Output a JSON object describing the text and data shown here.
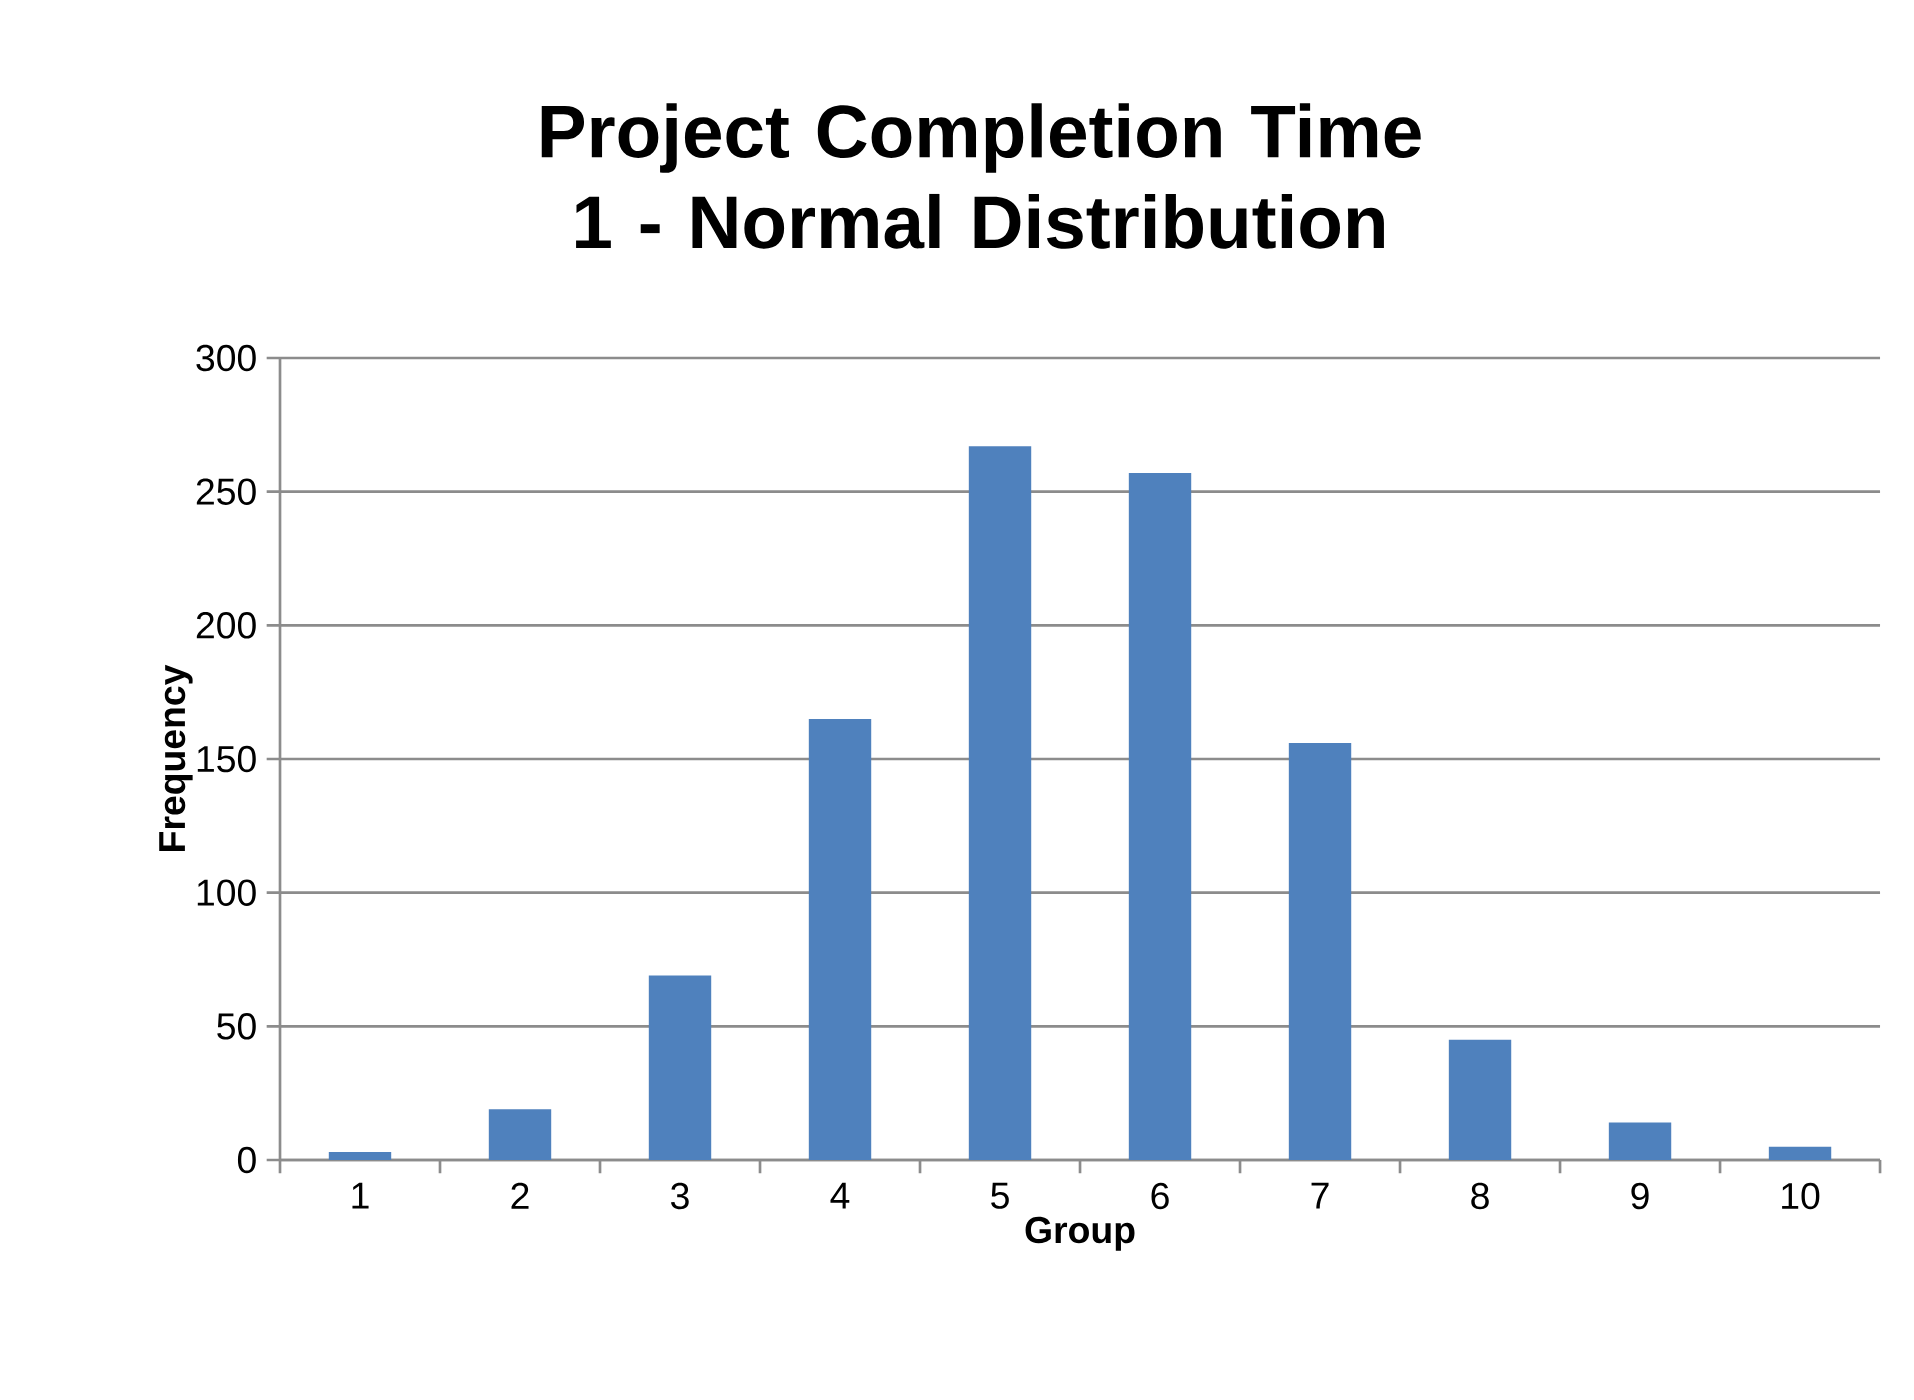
{
  "chart_data": {
    "type": "bar",
    "title": "Project Completion Time 1 - Normal Distribution",
    "xlabel": "Group",
    "ylabel": "Frequency",
    "categories": [
      "1",
      "2",
      "3",
      "4",
      "5",
      "6",
      "7",
      "8",
      "9",
      "10"
    ],
    "values": [
      3,
      19,
      69,
      165,
      267,
      257,
      156,
      45,
      14,
      5
    ],
    "color": "#4f81bd",
    "ylim": [
      0,
      300
    ],
    "yticks": [
      0,
      50,
      100,
      150,
      200,
      250,
      300
    ],
    "grid": "y"
  }
}
